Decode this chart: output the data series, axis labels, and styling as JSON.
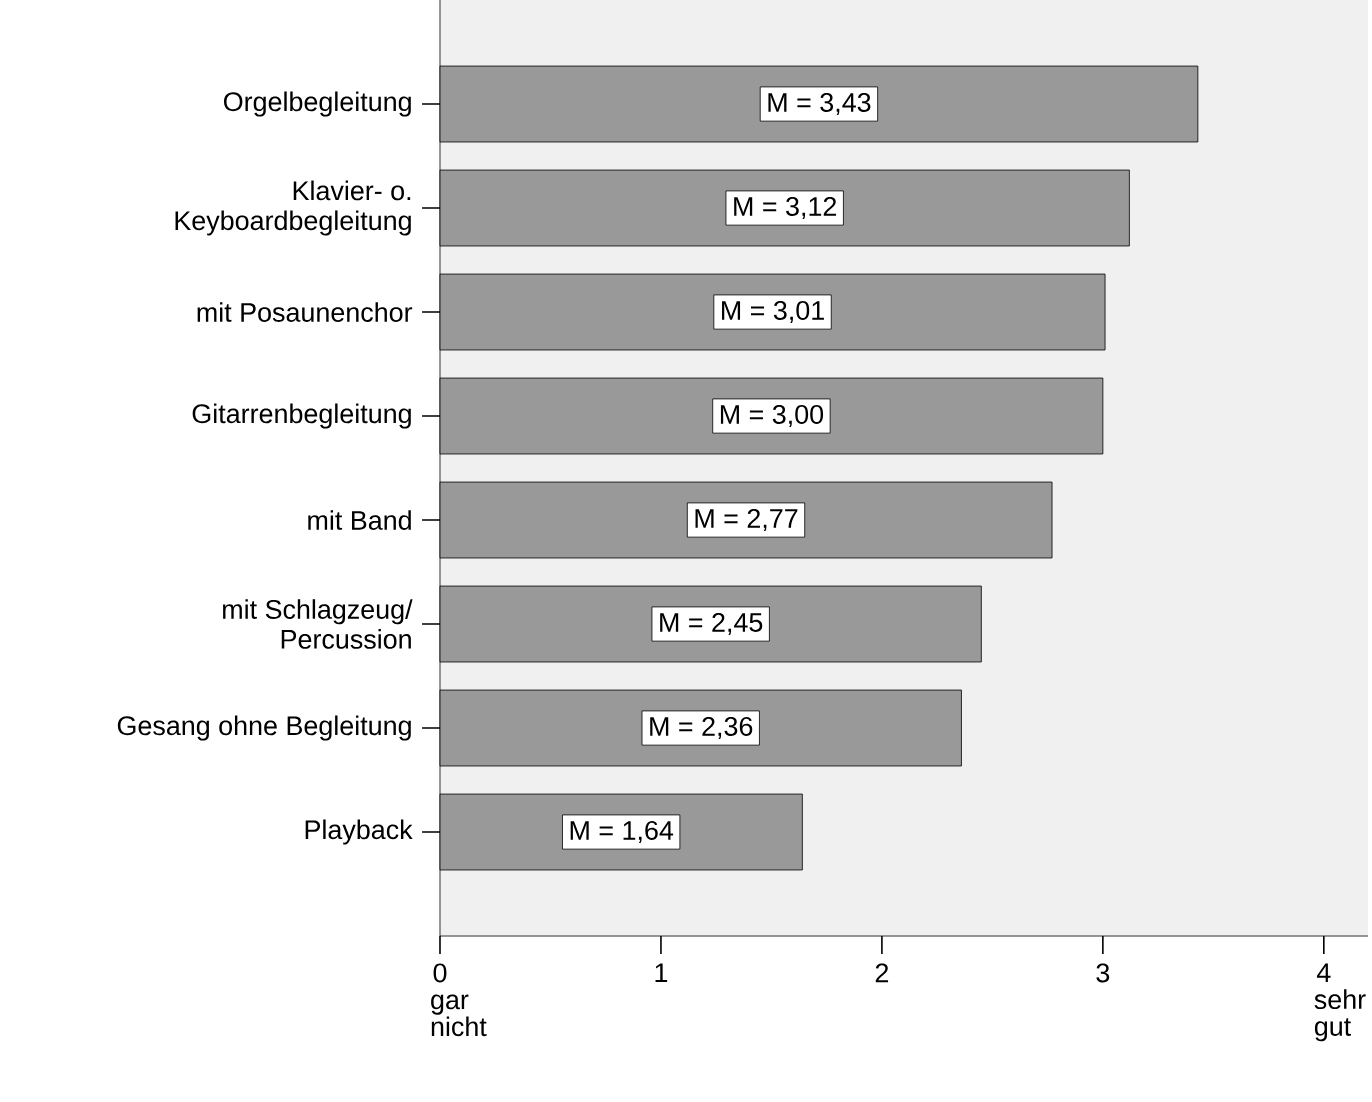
{
  "chart_data": {
    "type": "bar",
    "orientation": "horizontal",
    "categories": [
      "Orgelbegleitung",
      "Klavier- o.\nKeyboardbegleitung",
      "mit Posaunenchor",
      "Gitarrenbegleitung",
      "mit Band",
      "mit Schlagzeug/\nPercussion",
      "Gesang ohne Begleitung",
      "Playback"
    ],
    "values": [
      3.43,
      3.12,
      3.01,
      3.0,
      2.77,
      2.45,
      2.36,
      1.64
    ],
    "value_labels": [
      "M = 3,43",
      "M = 3,12",
      "M = 3,01",
      "M = 3,00",
      "M = 2,77",
      "M = 2,45",
      "M = 2,36",
      "M = 1,64"
    ],
    "color": "#999999",
    "xlim": [
      0,
      4.2
    ],
    "xticks": [
      {
        "value": 0,
        "label": "0 gar nicht"
      },
      1,
      2,
      3,
      {
        "value": 4,
        "label": "4 sehr gut"
      }
    ],
    "grid": false
  }
}
